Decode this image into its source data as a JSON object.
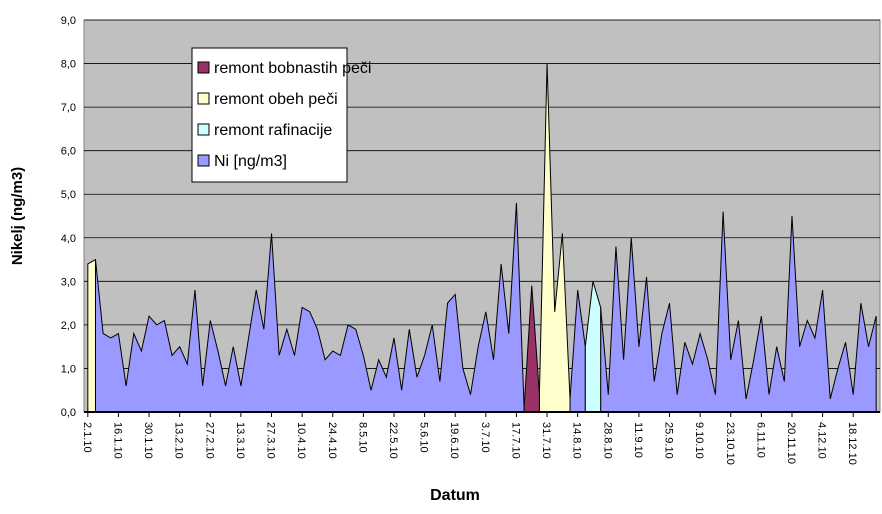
{
  "chart_data": {
    "type": "area",
    "x_label": "Datum",
    "y_label": "Nikelj (ng/m3)",
    "categories": [
      "2.1.10",
      null,
      null,
      null,
      "16.1.10",
      null,
      null,
      null,
      "30.1.10",
      null,
      null,
      null,
      "13.2.10",
      null,
      null,
      null,
      "27.2.10",
      null,
      null,
      null,
      "13.3.10",
      null,
      null,
      null,
      "27.3.10",
      null,
      null,
      null,
      "10.4.10",
      null,
      null,
      null,
      "24.4.10",
      null,
      null,
      null,
      "8.5.10",
      null,
      null,
      null,
      "22.5.10",
      null,
      null,
      null,
      "5.6.10",
      null,
      null,
      null,
      "19.6.10",
      null,
      null,
      null,
      "3.7.10",
      null,
      null,
      null,
      "17.7.10",
      null,
      null,
      null,
      "31.7.10",
      null,
      null,
      null,
      "14.8.10",
      null,
      null,
      null,
      "28.8.10",
      null,
      null,
      null,
      "11.9.10",
      null,
      null,
      null,
      "25.9.10",
      null,
      null,
      null,
      "9.10.10",
      null,
      null,
      null,
      "23.10.10",
      null,
      null,
      null,
      "6.11.10",
      null,
      null,
      null,
      "20.11.10",
      null,
      null,
      null,
      "4.12.10",
      null,
      null,
      null,
      "18.12.10",
      null,
      null,
      null
    ],
    "series": [
      {
        "name": "remont bobnastih peči",
        "color": "#993366",
        "values": [
          null,
          null,
          null,
          null,
          null,
          null,
          null,
          null,
          null,
          null,
          null,
          null,
          null,
          null,
          null,
          null,
          null,
          null,
          null,
          null,
          null,
          null,
          null,
          null,
          null,
          null,
          null,
          null,
          null,
          null,
          null,
          null,
          null,
          null,
          null,
          null,
          null,
          null,
          null,
          null,
          null,
          null,
          null,
          null,
          null,
          null,
          null,
          null,
          null,
          null,
          null,
          null,
          null,
          null,
          null,
          null,
          null,
          0.1,
          2.9,
          0.4,
          null,
          null,
          null,
          null,
          null,
          null,
          null,
          null,
          null,
          null,
          null,
          null,
          null,
          null,
          null,
          null,
          null,
          null,
          null,
          null,
          null,
          null,
          null,
          null,
          null,
          null,
          null,
          null,
          null,
          null,
          null,
          null,
          null,
          null,
          null,
          null,
          null,
          null,
          null,
          null,
          null,
          null,
          null,
          null
        ]
      },
      {
        "name": "remont obeh peči",
        "color": "#ffffcc",
        "values": [
          3.4,
          3.5,
          null,
          null,
          null,
          null,
          null,
          null,
          null,
          null,
          null,
          null,
          null,
          null,
          null,
          null,
          null,
          null,
          null,
          null,
          null,
          null,
          null,
          null,
          null,
          null,
          null,
          null,
          null,
          null,
          null,
          null,
          null,
          null,
          null,
          null,
          null,
          null,
          null,
          null,
          null,
          null,
          null,
          null,
          null,
          null,
          null,
          null,
          null,
          null,
          null,
          null,
          null,
          null,
          null,
          null,
          null,
          null,
          null,
          0.4,
          8.0,
          2.3,
          4.1,
          0.3,
          null,
          null,
          null,
          null,
          null,
          null,
          null,
          null,
          null,
          null,
          null,
          null,
          null,
          null,
          null,
          null,
          null,
          null,
          null,
          null,
          null,
          null,
          null,
          null,
          null,
          null,
          null,
          null,
          null,
          null,
          null,
          null,
          null,
          null,
          null,
          null,
          null,
          null,
          null,
          null
        ]
      },
      {
        "name": "remont rafinacije",
        "color": "#ccffff",
        "values": [
          null,
          null,
          null,
          null,
          null,
          null,
          null,
          null,
          null,
          null,
          null,
          null,
          null,
          null,
          null,
          null,
          null,
          null,
          null,
          null,
          null,
          null,
          null,
          null,
          null,
          null,
          null,
          null,
          null,
          null,
          null,
          null,
          null,
          null,
          null,
          null,
          null,
          null,
          null,
          null,
          null,
          null,
          null,
          null,
          null,
          null,
          null,
          null,
          null,
          null,
          null,
          null,
          null,
          null,
          null,
          null,
          null,
          null,
          null,
          null,
          null,
          null,
          null,
          null,
          null,
          1.5,
          3.0,
          2.4,
          null,
          null,
          null,
          null,
          null,
          null,
          null,
          null,
          null,
          null,
          null,
          null,
          null,
          null,
          null,
          null,
          null,
          null,
          null,
          null,
          null,
          null,
          null,
          null,
          null,
          null,
          null,
          null,
          null,
          null,
          null,
          null,
          null,
          null,
          null,
          null
        ]
      },
      {
        "name": "Ni [ng/m3]",
        "color": "#9999ff",
        "values": [
          null,
          3.5,
          1.8,
          1.7,
          1.8,
          0.6,
          1.8,
          1.4,
          2.2,
          2.0,
          2.1,
          1.3,
          1.5,
          1.1,
          2.8,
          0.6,
          2.1,
          1.4,
          0.6,
          1.5,
          0.6,
          1.7,
          2.8,
          1.9,
          4.1,
          1.3,
          1.9,
          1.3,
          2.4,
          2.3,
          1.9,
          1.2,
          1.4,
          1.3,
          2.0,
          1.9,
          1.3,
          0.5,
          1.2,
          0.8,
          1.7,
          0.5,
          1.9,
          0.8,
          1.3,
          2.0,
          0.7,
          2.5,
          2.7,
          1.0,
          0.4,
          1.5,
          2.3,
          1.2,
          3.4,
          1.8,
          4.8,
          0.1,
          null,
          null,
          null,
          null,
          null,
          0.3,
          2.8,
          1.5,
          null,
          2.4,
          0.4,
          3.8,
          1.2,
          4.0,
          1.5,
          3.1,
          0.7,
          1.8,
          2.5,
          0.4,
          1.6,
          1.1,
          1.8,
          1.2,
          0.4,
          4.6,
          1.2,
          2.1,
          0.3,
          1.2,
          2.2,
          0.4,
          1.5,
          0.7,
          4.5,
          1.5,
          2.1,
          1.7,
          2.8,
          0.3,
          1.0,
          1.6,
          0.4,
          2.5,
          1.5,
          2.2
        ]
      }
    ],
    "ylim": [
      0,
      9
    ],
    "yticks": [
      {
        "value": 0,
        "label": "0,0"
      },
      {
        "value": 1,
        "label": "1,0"
      },
      {
        "value": 2,
        "label": "2,0"
      },
      {
        "value": 3,
        "label": "3,0"
      },
      {
        "value": 4,
        "label": "4,0"
      },
      {
        "value": 5,
        "label": "5,0"
      },
      {
        "value": 6,
        "label": "6,0"
      },
      {
        "value": 7,
        "label": "7,0"
      },
      {
        "value": 8,
        "label": "8,0"
      },
      {
        "value": 9,
        "label": "9,0"
      }
    ],
    "grid": true,
    "legend": "upper-left"
  }
}
